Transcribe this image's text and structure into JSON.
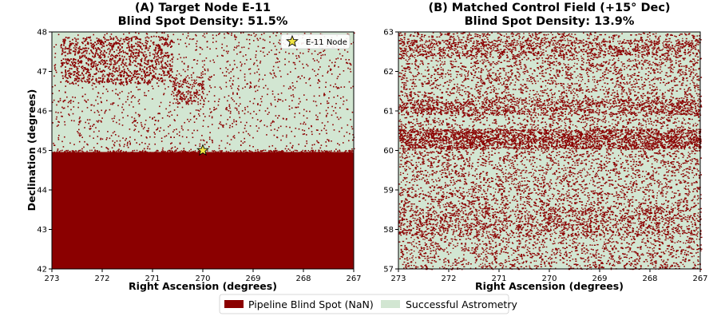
{
  "chart_data": [
    {
      "type": "heatmap",
      "title": "(A) Target Node E-11",
      "subtitle": "Blind Spot Density: 51.5%",
      "xlabel": "Right Ascension (degrees)",
      "ylabel": "Declination (degrees)",
      "xlim": [
        273,
        267
      ],
      "ylim": [
        42,
        48
      ],
      "x_ticks": [
        "273",
        "272",
        "271",
        "270",
        "269",
        "268",
        "267"
      ],
      "y_ticks": [
        "42",
        "43",
        "44",
        "45",
        "46",
        "47",
        "48"
      ],
      "blind_spot_density_percent": 51.5,
      "solid_blind_region": {
        "dec_min": 42,
        "dec_max": 44.96,
        "ra_min": 267,
        "ra_max": 273
      },
      "scatter_region": {
        "dec_min": 44.96,
        "dec_max": 48,
        "dense_upper_band_dec": [
          46.8,
          48
        ]
      },
      "marker": {
        "label": "E-11 Node",
        "ra": 270.0,
        "dec": 45.0,
        "shape": "star",
        "color": "#f0e442"
      },
      "legend_loc": "top-right"
    },
    {
      "type": "heatmap",
      "title": "(B) Matched Control Field (+15° Dec)",
      "subtitle": "Blind Spot Density: 13.9%",
      "xlabel": "Right Ascension (degrees)",
      "ylabel": "",
      "xlim": [
        273,
        267
      ],
      "ylim": [
        57,
        63
      ],
      "x_ticks": [
        "273",
        "272",
        "271",
        "270",
        "269",
        "268",
        "267"
      ],
      "y_ticks": [
        "57",
        "58",
        "59",
        "60",
        "61",
        "62",
        "63"
      ],
      "blind_spot_density_percent": 13.9
    }
  ],
  "legend": {
    "items": [
      {
        "label": "Pipeline Blind Spot (NaN)",
        "color": "#8b0000"
      },
      {
        "label": "Successful Astrometry",
        "color": "#d2e6d2"
      }
    ]
  },
  "colors": {
    "blind": "#8b0000",
    "success": "#d2e6d2"
  }
}
